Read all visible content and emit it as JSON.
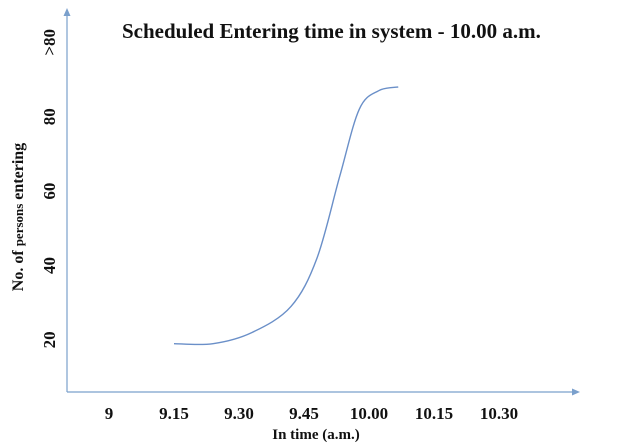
{
  "chart_data": {
    "type": "line",
    "title": "Scheduled Entering time in system - 10.00 a.m.",
    "xlabel": "In time (a.m.)",
    "ylabel": {
      "prefix": "No. of ",
      "middle": "persons",
      "suffix": " entering"
    },
    "x_ticks": [
      "9",
      "9.15",
      "9.30",
      "9.45",
      "10.00",
      "10.15",
      "10.30"
    ],
    "y_ticks": [
      "20",
      "40",
      "60",
      "80",
      ">80"
    ],
    "xlim": [
      0,
      6
    ],
    "ylim": [
      0,
      100
    ],
    "grid": false,
    "legend": "none",
    "series": [
      {
        "color": "#6a8fc8",
        "points": [
          {
            "x": 1.0,
            "y": 13
          },
          {
            "x": 1.6,
            "y": 13
          },
          {
            "x": 2.2,
            "y": 16
          },
          {
            "x": 2.8,
            "y": 23
          },
          {
            "x": 3.2,
            "y": 36
          },
          {
            "x": 3.55,
            "y": 58
          },
          {
            "x": 3.85,
            "y": 76
          },
          {
            "x": 4.15,
            "y": 81
          },
          {
            "x": 4.45,
            "y": 82
          }
        ]
      }
    ],
    "axis_color": "#7aa0cc"
  }
}
